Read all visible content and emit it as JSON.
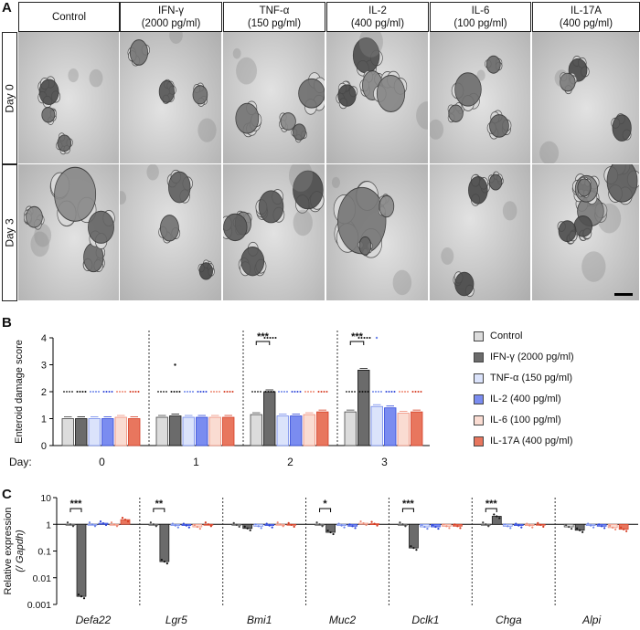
{
  "panel_a": {
    "letter": "A",
    "columns": [
      "Control",
      "IFN-γ\n(2000 pg/ml)",
      "TNF-α\n(150 pg/ml)",
      "IL-2\n(400 pg/ml)",
      "IL-6\n(100 pg/ml)",
      "IL-17A\n(400 pg/ml)"
    ],
    "rows": [
      "Day 0",
      "Day 3"
    ]
  },
  "panel_b": {
    "letter": "B"
  },
  "panel_c": {
    "letter": "C"
  },
  "legend": [
    {
      "label": "Control",
      "color": "#dcdcdc"
    },
    {
      "label": "IFN-γ (2000 pg/ml)",
      "color": "#6b6b6b"
    },
    {
      "label": "TNF-α (150 pg/ml)",
      "color": "#dbe3fb"
    },
    {
      "label": "IL-2 (400 pg/ml)",
      "color": "#7a8cf0"
    },
    {
      "label": "IL-6 (100 pg/ml)",
      "color": "#fadcd2"
    },
    {
      "label": "IL-17A (400 pg/ml)",
      "color": "#e8765e"
    }
  ],
  "colors": {
    "fill": [
      "#dcdcdc",
      "#6b6b6b",
      "#dbe3fb",
      "#7a8cf0",
      "#fadcd2",
      "#e8765e"
    ],
    "dot": [
      "#444444",
      "#111111",
      "#6f87ea",
      "#2e46d8",
      "#ee8c77",
      "#d63d23"
    ]
  },
  "chart_data": [
    {
      "type": "bar",
      "ylabel": "Enteroid damage score",
      "xlabel": "Day:",
      "categories": [
        "0",
        "1",
        "2",
        "3"
      ],
      "yticks": [
        "0",
        "1",
        "2",
        "3",
        "4"
      ],
      "ylim": [
        0,
        4
      ],
      "series": [
        {
          "name": "Control",
          "values": [
            1.0,
            1.05,
            1.15,
            1.25
          ]
        },
        {
          "name": "IFN-γ (2000 pg/ml)",
          "values": [
            1.0,
            1.1,
            2.0,
            2.8
          ]
        },
        {
          "name": "TNF-α (150 pg/ml)",
          "values": [
            1.0,
            1.05,
            1.1,
            1.45
          ]
        },
        {
          "name": "IL-2 (400 pg/ml)",
          "values": [
            1.0,
            1.05,
            1.1,
            1.4
          ]
        },
        {
          "name": "IL-6 (100 pg/ml)",
          "values": [
            1.05,
            1.05,
            1.15,
            1.2
          ]
        },
        {
          "name": "IL-17A (400 pg/ml)",
          "values": [
            1.0,
            1.05,
            1.25,
            1.25
          ]
        }
      ],
      "significance": [
        {
          "day": "2",
          "label": "***"
        },
        {
          "day": "3",
          "label": "***"
        }
      ],
      "grid": false,
      "legend_position": "right"
    },
    {
      "type": "bar",
      "scale": "log",
      "ylabel": "Relative expression",
      "ylabel2": "(/ Gapdh)",
      "categories": [
        "Defa22",
        "Lgr5",
        "Bmi1",
        "Muc2",
        "Dclk1",
        "Chga",
        "Alpi"
      ],
      "yticks": [
        "0.001",
        "0.01",
        "0.1",
        "1",
        "10"
      ],
      "ylim": [
        0.001,
        10
      ],
      "series": [
        {
          "name": "Control",
          "values": [
            1.0,
            1.0,
            0.95,
            1.0,
            1.0,
            1.0,
            0.8
          ]
        },
        {
          "name": "IFN-γ (2000 pg/ml)",
          "values": [
            0.002,
            0.04,
            0.7,
            0.5,
            0.13,
            2.0,
            0.6
          ]
        },
        {
          "name": "TNF-α (150 pg/ml)",
          "values": [
            1.0,
            0.9,
            0.85,
            0.9,
            0.8,
            0.85,
            0.9
          ]
        },
        {
          "name": "IL-2 (400 pg/ml)",
          "values": [
            1.1,
            0.9,
            0.9,
            0.85,
            0.8,
            0.9,
            0.85
          ]
        },
        {
          "name": "IL-6 (100 pg/ml)",
          "values": [
            1.0,
            0.8,
            1.0,
            1.1,
            0.85,
            0.9,
            0.75
          ]
        },
        {
          "name": "IL-17A (400 pg/ml)",
          "values": [
            1.5,
            1.0,
            0.95,
            1.05,
            0.85,
            0.95,
            0.65
          ]
        }
      ],
      "significance": [
        {
          "gene": "Defa22",
          "label": "***"
        },
        {
          "gene": "Lgr5",
          "label": "**"
        },
        {
          "gene": "Muc2",
          "label": "*"
        },
        {
          "gene": "Dclk1",
          "label": "***"
        },
        {
          "gene": "Chga",
          "label": "***"
        }
      ],
      "grid": false
    }
  ]
}
